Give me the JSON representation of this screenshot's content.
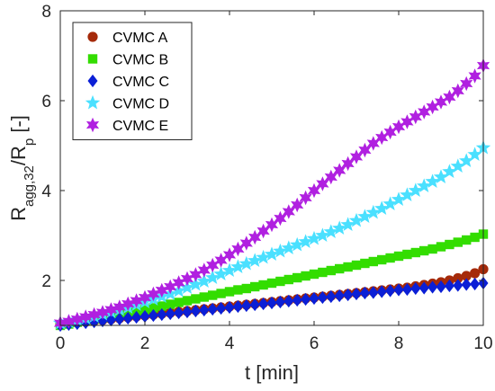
{
  "chart_data": {
    "type": "scatter",
    "xlabel": "t [min]",
    "ylabel_parts": {
      "main": "R",
      "sub1": "agg,32",
      "mid": "/R",
      "sub2": "p",
      "tail": " [-]"
    },
    "xlim": [
      0,
      10
    ],
    "ylim": [
      1,
      8
    ],
    "xticks": [
      0,
      2,
      4,
      6,
      8,
      10
    ],
    "yticks": [
      2,
      4,
      6,
      8
    ],
    "grid": false,
    "legend_position": "top-left",
    "x": [
      0.0,
      0.2,
      0.4,
      0.6,
      0.8,
      1.0,
      1.2,
      1.4,
      1.6,
      1.8,
      2.0,
      2.2,
      2.4,
      2.6,
      2.8,
      3.0,
      3.2,
      3.4,
      3.6,
      3.8,
      4.0,
      4.2,
      4.4,
      4.6,
      4.8,
      5.0,
      5.2,
      5.4,
      5.6,
      5.8,
      6.0,
      6.2,
      6.4,
      6.6,
      6.8,
      7.0,
      7.2,
      7.4,
      7.6,
      7.8,
      8.0,
      8.2,
      8.4,
      8.6,
      8.8,
      9.0,
      9.2,
      9.4,
      9.6,
      9.8,
      10.0
    ],
    "series": [
      {
        "name": "CVMC A",
        "marker": "circle",
        "color": "#a52a0a",
        "values": [
          1.02,
          1.04,
          1.06,
          1.08,
          1.1,
          1.12,
          1.14,
          1.16,
          1.18,
          1.2,
          1.22,
          1.24,
          1.26,
          1.28,
          1.3,
          1.32,
          1.34,
          1.36,
          1.38,
          1.4,
          1.42,
          1.44,
          1.46,
          1.48,
          1.5,
          1.52,
          1.54,
          1.56,
          1.58,
          1.6,
          1.62,
          1.64,
          1.66,
          1.68,
          1.7,
          1.72,
          1.74,
          1.76,
          1.78,
          1.8,
          1.82,
          1.84,
          1.87,
          1.9,
          1.93,
          1.96,
          2.0,
          2.05,
          2.1,
          2.16,
          2.25
        ]
      },
      {
        "name": "CVMC B",
        "marker": "square",
        "color": "#33dd00",
        "values": [
          1.0,
          1.03,
          1.07,
          1.1,
          1.14,
          1.17,
          1.21,
          1.24,
          1.28,
          1.31,
          1.35,
          1.39,
          1.43,
          1.47,
          1.51,
          1.55,
          1.59,
          1.63,
          1.67,
          1.71,
          1.75,
          1.79,
          1.82,
          1.86,
          1.9,
          1.94,
          1.98,
          2.02,
          2.06,
          2.1,
          2.14,
          2.18,
          2.22,
          2.26,
          2.3,
          2.34,
          2.38,
          2.42,
          2.46,
          2.5,
          2.54,
          2.58,
          2.62,
          2.66,
          2.7,
          2.75,
          2.8,
          2.85,
          2.9,
          2.96,
          3.03
        ]
      },
      {
        "name": "CVMC C",
        "marker": "diamond",
        "color": "#0b1fd6",
        "values": [
          1.0,
          1.02,
          1.04,
          1.06,
          1.08,
          1.1,
          1.12,
          1.14,
          1.16,
          1.18,
          1.2,
          1.22,
          1.24,
          1.26,
          1.28,
          1.3,
          1.32,
          1.34,
          1.36,
          1.38,
          1.4,
          1.42,
          1.44,
          1.46,
          1.48,
          1.5,
          1.52,
          1.54,
          1.56,
          1.58,
          1.6,
          1.62,
          1.64,
          1.66,
          1.68,
          1.7,
          1.72,
          1.73,
          1.75,
          1.77,
          1.79,
          1.8,
          1.82,
          1.83,
          1.85,
          1.86,
          1.88,
          1.89,
          1.91,
          1.92,
          1.94
        ]
      },
      {
        "name": "CVMC D",
        "marker": "star5",
        "color": "#4ae0ff",
        "values": [
          1.05,
          1.08,
          1.12,
          1.16,
          1.2,
          1.25,
          1.3,
          1.35,
          1.4,
          1.46,
          1.52,
          1.58,
          1.64,
          1.7,
          1.77,
          1.84,
          1.91,
          1.98,
          2.06,
          2.14,
          2.22,
          2.3,
          2.37,
          2.44,
          2.51,
          2.58,
          2.65,
          2.72,
          2.79,
          2.86,
          2.93,
          3.0,
          3.08,
          3.16,
          3.24,
          3.33,
          3.42,
          3.51,
          3.6,
          3.7,
          3.8,
          3.9,
          4.0,
          4.1,
          4.2,
          4.3,
          4.42,
          4.54,
          4.66,
          4.8,
          4.95
        ]
      },
      {
        "name": "CVMC E",
        "marker": "star6",
        "color": "#b020e0",
        "values": [
          1.05,
          1.09,
          1.14,
          1.19,
          1.24,
          1.29,
          1.35,
          1.41,
          1.48,
          1.55,
          1.62,
          1.7,
          1.78,
          1.86,
          1.95,
          2.04,
          2.13,
          2.23,
          2.34,
          2.45,
          2.57,
          2.7,
          2.83,
          2.96,
          3.1,
          3.24,
          3.38,
          3.53,
          3.68,
          3.84,
          4.0,
          4.15,
          4.3,
          4.45,
          4.6,
          4.75,
          4.9,
          5.05,
          5.18,
          5.3,
          5.42,
          5.53,
          5.64,
          5.75,
          5.86,
          5.97,
          6.08,
          6.22,
          6.38,
          6.55,
          6.78
        ]
      }
    ]
  }
}
